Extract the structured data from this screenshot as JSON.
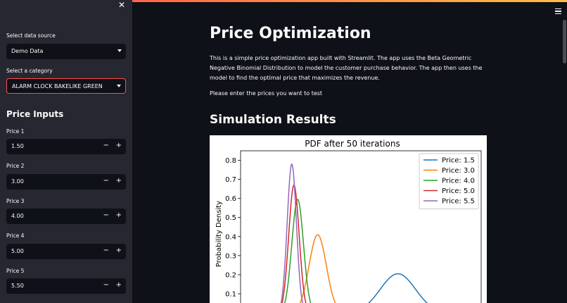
{
  "sidebar": {
    "close_icon": "✕",
    "data_source_label": "Select data source",
    "data_source_value": "Demo Data",
    "category_label": "Select a category",
    "category_value": "ALARM CLOCK BAKELIKE GREEN",
    "price_inputs_heading": "Price Inputs",
    "price_inputs": [
      {
        "label": "Price 1",
        "value": "1.50"
      },
      {
        "label": "Price 2",
        "value": "3.00"
      },
      {
        "label": "Price 3",
        "value": "4.00"
      },
      {
        "label": "Price 4",
        "value": "5.00"
      },
      {
        "label": "Price 5",
        "value": "5.50"
      }
    ],
    "minus": "−",
    "plus": "+"
  },
  "main": {
    "title": "Price Optimization",
    "description": "This is a simple price optimization app built with Streamlit. The app uses the Beta Geometric Negative Binomial Distribution to model the customer purchase behavior. The app then uses the model to find the optimal price that maximizes the revenue.",
    "prompt": "Please enter the prices you want to test",
    "section_title": "Simulation Results"
  },
  "colors": {
    "accent": "#ff4b4b",
    "sidebar_bg": "#262730",
    "main_bg": "#0e1117"
  },
  "chart_data": {
    "type": "line",
    "title": "PDF after 50 iterations",
    "ylabel": "Probability Density",
    "ylim": [
      0,
      0.85
    ],
    "yticks": [
      "0.1",
      "0.2",
      "0.3",
      "0.4",
      "0.5",
      "0.6",
      "0.7",
      "0.8"
    ],
    "series": [
      {
        "name": "Price: 1.5",
        "color": "#1f77b4",
        "mean": 0.51,
        "sd": 0.057,
        "peak": 0.205
      },
      {
        "name": "Price: 3.0",
        "color": "#ff7f0e",
        "mean": 0.25,
        "sd": 0.028,
        "peak": 0.41
      },
      {
        "name": "Price: 4.0",
        "color": "#2ca02c",
        "mean": 0.185,
        "sd": 0.019,
        "peak": 0.595
      },
      {
        "name": "Price: 5.0",
        "color": "#d62728",
        "mean": 0.173,
        "sd": 0.017,
        "peak": 0.67
      },
      {
        "name": "Price: 5.5",
        "color": "#9467bd",
        "mean": 0.166,
        "sd": 0.015,
        "peak": 0.78
      }
    ]
  }
}
